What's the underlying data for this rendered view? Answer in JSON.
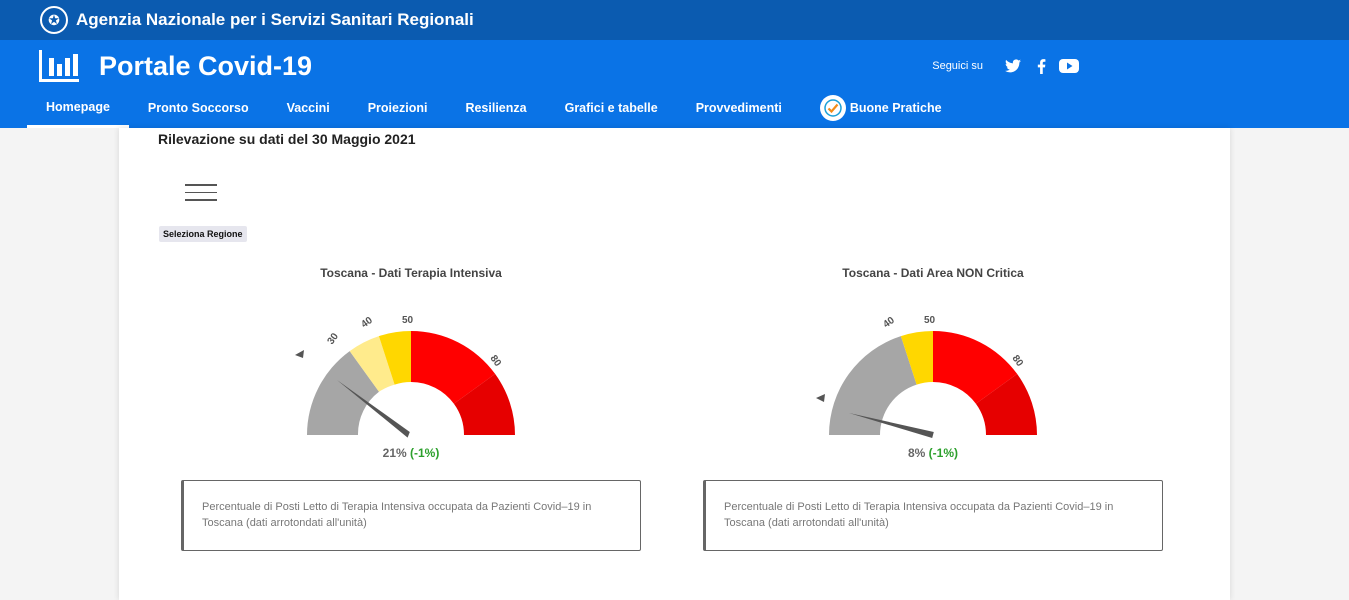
{
  "topbar": {
    "org_name": "Agenzia Nazionale per i Servizi Sanitari Regionali",
    "emblem_icon": "italian-republic-emblem"
  },
  "header": {
    "title": "Portale Covid-19",
    "logo_icon": "bar-chart-icon",
    "social_label": "Seguici su",
    "social_icons": [
      "twitter-icon",
      "facebook-icon",
      "youtube-icon"
    ]
  },
  "nav": {
    "items": [
      {
        "label": "Homepage",
        "active": true
      },
      {
        "label": "Pronto Soccorso"
      },
      {
        "label": "Vaccini"
      },
      {
        "label": "Proiezioni"
      },
      {
        "label": "Resilienza"
      },
      {
        "label": "Grafici e tabelle"
      },
      {
        "label": "Provvedimenti"
      },
      {
        "label": "Buone Pratiche",
        "icon": "check-badge-icon"
      }
    ]
  },
  "main": {
    "date_label": "Rilevazione su dati del 30 Maggio 2021",
    "region_button": "Seleziona Regione"
  },
  "gauges": [
    {
      "title": "Toscana - Dati Terapia Intensiva",
      "value_text": "21%",
      "delta_text": "(-1%)",
      "ticks": [
        "30",
        "40",
        "50",
        "80"
      ],
      "description": "Percentuale di Posti Letto di Terapia Intensiva occupata da Pazienti Covid–19 in Toscana (dati arrotondati all'unità)"
    },
    {
      "title": "Toscana - Dati Area NON Critica",
      "value_text": "8%",
      "delta_text": "(-1%)",
      "ticks": [
        "40",
        "50",
        "80"
      ],
      "description": "Percentuale di Posti Letto di Terapia Intensiva occupata da Pazienti Covid–19 in Toscana (dati arrotondati all'unità)"
    }
  ],
  "colors": {
    "topbar": "#0b5bb0",
    "header": "#0a73e6",
    "gray_band": "#a6a6a6",
    "light_yellow_band": "#ffeb8c",
    "yellow_band": "#ffd700",
    "red_band": "#ff0000",
    "dark_red_band": "#e60000",
    "delta_green": "#2ca02c"
  }
}
